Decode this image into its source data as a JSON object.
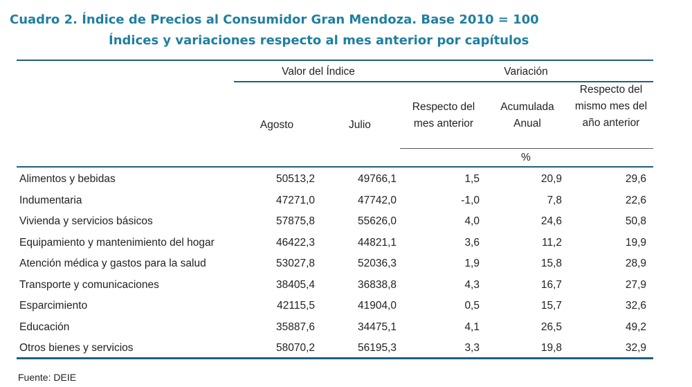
{
  "title_line1": "Cuadro 2. Índice de Precios al Consumidor Gran Mendoza. Base 2010 = 100",
  "title_line2": "Índices y variaciones respecto al mes anterior por capítulos",
  "header": {
    "group_index": "Valor del Índice",
    "group_variation": "Variación",
    "col_agosto": "Agosto",
    "col_julio": "Julio",
    "col_mes_anterior": "Respecto del mes anterior",
    "col_acumulada": "Acumulada Anual",
    "col_mismo_mes": "Respecto del mismo mes del año anterior",
    "unit": "%"
  },
  "rows": [
    {
      "label": "Alimentos y bebidas",
      "agosto": "50513,2",
      "julio": "49766,1",
      "mes_anterior": "1,5",
      "acumulada": "20,9",
      "mismo_mes": "29,6"
    },
    {
      "label": "Indumentaria",
      "agosto": "47271,0",
      "julio": "47742,0",
      "mes_anterior": "-1,0",
      "acumulada": "7,8",
      "mismo_mes": "22,6"
    },
    {
      "label": "Vivienda y servicios básicos",
      "agosto": "57875,8",
      "julio": "55626,0",
      "mes_anterior": "4,0",
      "acumulada": "24,6",
      "mismo_mes": "50,8"
    },
    {
      "label": "Equipamiento y mantenimiento del hogar",
      "agosto": "46422,3",
      "julio": "44821,1",
      "mes_anterior": "3,6",
      "acumulada": "11,2",
      "mismo_mes": "19,9"
    },
    {
      "label": "Atención médica y gastos para la salud",
      "agosto": "53027,8",
      "julio": "52036,3",
      "mes_anterior": "1,9",
      "acumulada": "15,8",
      "mismo_mes": "28,9"
    },
    {
      "label": "Transporte y comunicaciones",
      "agosto": "38405,4",
      "julio": "36838,8",
      "mes_anterior": "4,3",
      "acumulada": "16,7",
      "mismo_mes": "27,9"
    },
    {
      "label": "Esparcimiento",
      "agosto": "42115,5",
      "julio": "41904,0",
      "mes_anterior": "0,5",
      "acumulada": "15,7",
      "mismo_mes": "32,6"
    },
    {
      "label": "Educación",
      "agosto": "35887,6",
      "julio": "34475,1",
      "mes_anterior": "4,1",
      "acumulada": "26,5",
      "mismo_mes": "49,2"
    },
    {
      "label": "Otros bienes y servicios",
      "agosto": "58070,2",
      "julio": "56195,3",
      "mes_anterior": "3,3",
      "acumulada": "19,8",
      "mismo_mes": "32,9"
    }
  ],
  "source": "Fuente: DEIE"
}
